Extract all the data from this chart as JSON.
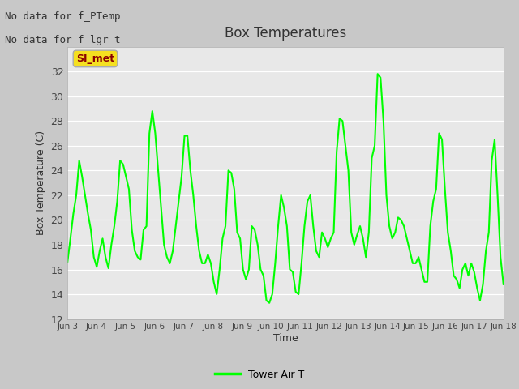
{
  "title": "Box Temperatures",
  "ylabel": "Box Temperature (C)",
  "xlabel": "Time",
  "ylim": [
    12,
    34
  ],
  "yticks": [
    12,
    14,
    16,
    18,
    20,
    22,
    24,
    26,
    28,
    30,
    32
  ],
  "line_color": "#00ff00",
  "line_width": 1.5,
  "fig_bg_color": "#c8c8c8",
  "plot_bg_color": "#e8e8e8",
  "no_data_text1": "No data for f_PTemp",
  "no_data_text2": "No data for f¯lgr_t",
  "annotation_text": "SI_met",
  "legend_label": "Tower Air T",
  "x_labels": [
    "Jun 3",
    "Jun 4",
    "Jun 5",
    "Jun 6",
    "Jun 7",
    "Jun 8",
    "Jun 9",
    "Jun 10",
    "Jun 11",
    "Jun 12",
    "Jun 13",
    "Jun 14",
    "Jun 15",
    "Jun 16",
    "Jun 17",
    "Jun 18"
  ],
  "time_values": [
    3,
    4,
    5,
    6,
    7,
    8,
    9,
    10,
    11,
    12,
    13,
    14,
    15,
    16,
    17,
    18
  ],
  "tower_air_t": [
    16.6,
    18.5,
    20.5,
    22.0,
    24.8,
    23.5,
    22.0,
    20.5,
    19.2,
    17.0,
    16.2,
    17.5,
    18.5,
    17.0,
    16.1,
    18.0,
    19.5,
    21.5,
    24.8,
    24.5,
    23.5,
    22.5,
    19.2,
    17.5,
    17.0,
    16.8,
    19.2,
    19.5,
    27.0,
    28.8,
    27.0,
    24.0,
    21.0,
    18.0,
    17.0,
    16.5,
    17.5,
    19.5,
    21.5,
    23.5,
    26.8,
    26.8,
    24.0,
    22.0,
    19.5,
    17.5,
    16.5,
    16.5,
    17.2,
    16.5,
    15.0,
    14.0,
    16.0,
    18.5,
    19.5,
    24.0,
    23.8,
    22.5,
    19.0,
    18.5,
    16.0,
    15.2,
    16.0,
    19.5,
    19.2,
    18.0,
    16.0,
    15.5,
    13.5,
    13.3,
    14.0,
    16.5,
    19.5,
    22.0,
    21.0,
    19.5,
    16.0,
    15.8,
    14.2,
    14.0,
    16.5,
    19.5,
    21.5,
    22.0,
    19.5,
    17.5,
    17.0,
    19.0,
    18.5,
    17.8,
    18.5,
    19.0,
    25.5,
    28.2,
    28.0,
    26.0,
    24.0,
    19.0,
    18.0,
    18.8,
    19.5,
    18.5,
    17.0,
    19.0,
    25.0,
    26.0,
    31.8,
    31.5,
    28.0,
    22.0,
    19.5,
    18.5,
    19.0,
    20.2,
    20.0,
    19.5,
    18.5,
    17.5,
    16.5,
    16.5,
    17.0,
    16.0,
    15.0,
    15.0,
    19.5,
    21.5,
    22.5,
    27.0,
    26.5,
    22.5,
    19.0,
    17.5,
    15.5,
    15.2,
    14.5,
    16.0,
    16.5,
    15.5,
    16.5,
    15.8,
    14.5,
    13.5,
    14.8,
    17.5,
    19.0,
    24.8,
    26.5,
    22.0,
    17.0,
    14.8
  ]
}
